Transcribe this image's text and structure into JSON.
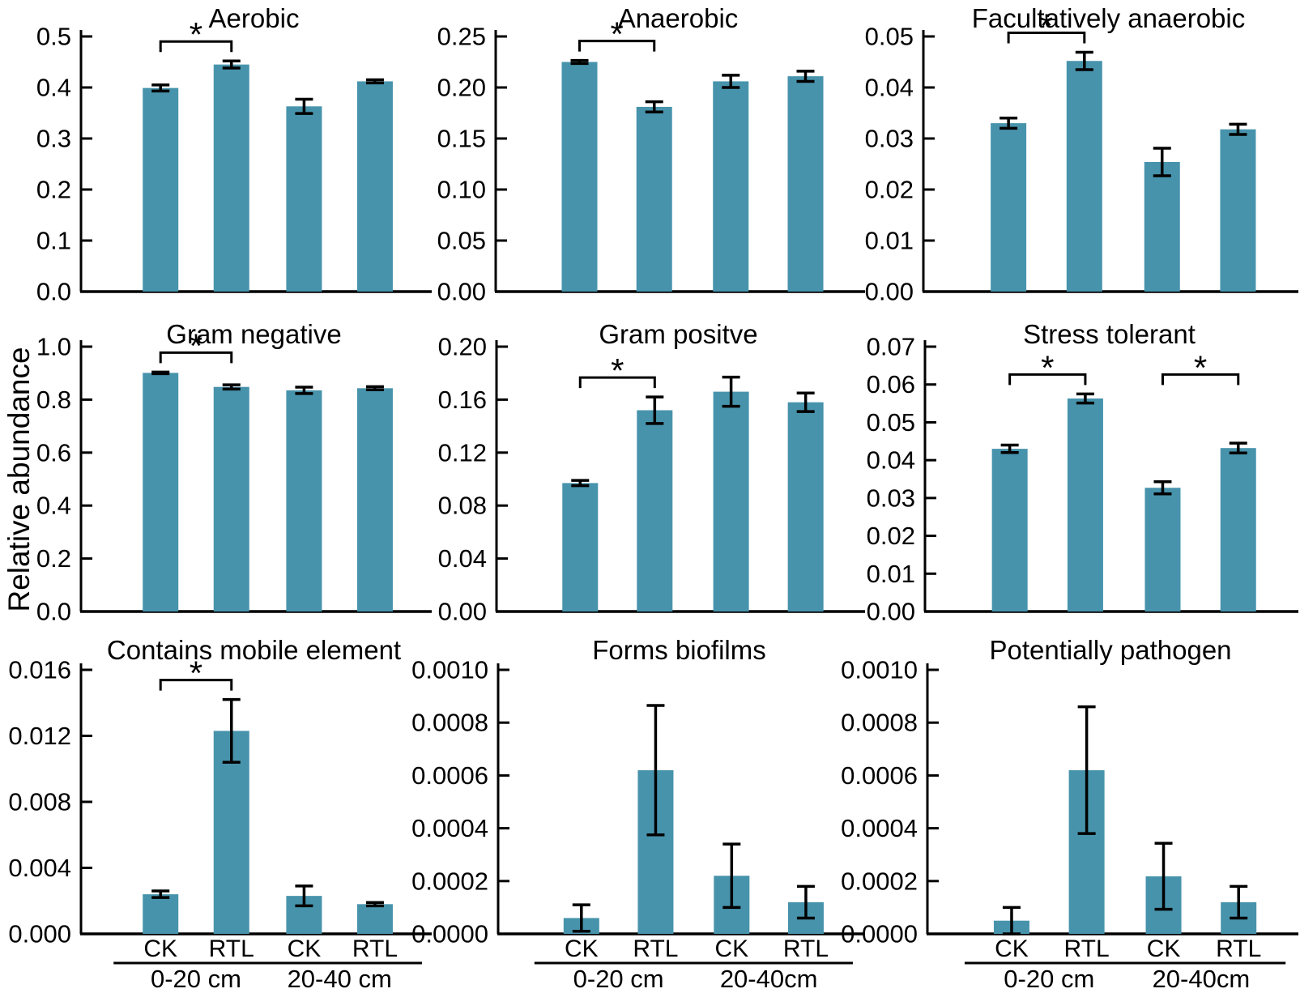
{
  "figure": {
    "ylabel": "Relative abundance",
    "bar_color": "#4793ac",
    "axis_color": "#000000",
    "significance_marker": "*"
  },
  "chart_data": [
    {
      "type": "bar",
      "title": "Aerobic",
      "categories": [
        "CK",
        "RTL",
        "CK",
        "RTL"
      ],
      "group_labels": [
        "0-20 cm",
        "20-40 cm"
      ],
      "values": [
        0.399,
        0.445,
        0.363,
        0.412
      ],
      "errors": [
        0.006,
        0.007,
        0.014,
        0.003
      ],
      "ylim": [
        0,
        0.5
      ],
      "yticks": [
        "0.0",
        "0.1",
        "0.2",
        "0.3",
        "0.4",
        "0.5"
      ],
      "significance": [
        [
          0,
          1
        ]
      ],
      "show_x_labels": false
    },
    {
      "type": "bar",
      "title": "Anaerobic",
      "categories": [
        "CK",
        "RTL",
        "CK",
        "RTL"
      ],
      "group_labels": [
        "0-20 cm",
        "20-40 cm"
      ],
      "values": [
        0.225,
        0.181,
        0.206,
        0.211
      ],
      "errors": [
        0.0015,
        0.005,
        0.006,
        0.005
      ],
      "ylim": [
        0,
        0.25
      ],
      "yticks": [
        "0.00",
        "0.05",
        "0.10",
        "0.15",
        "0.20",
        "0.25"
      ],
      "significance": [
        [
          0,
          1
        ]
      ],
      "show_x_labels": false
    },
    {
      "type": "bar",
      "title": "Facultatively anaerobic",
      "categories": [
        "CK",
        "RTL",
        "CK",
        "RTL"
      ],
      "group_labels": [
        "0-20 cm",
        "20-40 cm"
      ],
      "values": [
        0.033,
        0.0452,
        0.0254,
        0.0318
      ],
      "errors": [
        0.001,
        0.0017,
        0.0027,
        0.001
      ],
      "ylim": [
        0,
        0.05
      ],
      "yticks": [
        "0.00",
        "0.01",
        "0.02",
        "0.03",
        "0.04",
        "0.05"
      ],
      "significance": [
        [
          0,
          1
        ]
      ],
      "show_x_labels": false
    },
    {
      "type": "bar",
      "title": "Gram negative",
      "categories": [
        "CK",
        "RTL",
        "CK",
        "RTL"
      ],
      "group_labels": [
        "0-20 cm",
        "20-40 cm"
      ],
      "values": [
        0.901,
        0.848,
        0.835,
        0.843
      ],
      "errors": [
        0.003,
        0.008,
        0.012,
        0.006
      ],
      "ylim": [
        0,
        1.0
      ],
      "yticks": [
        "0.0",
        "0.2",
        "0.4",
        "0.6",
        "0.8",
        "1.0"
      ],
      "significance": [
        [
          0,
          1
        ]
      ],
      "show_x_labels": false
    },
    {
      "type": "bar",
      "title": "Gram positve",
      "categories": [
        "CK",
        "RTL",
        "CK",
        "RTL"
      ],
      "group_labels": [
        "0-20 cm",
        "20-40 cm"
      ],
      "values": [
        0.097,
        0.152,
        0.166,
        0.158
      ],
      "errors": [
        0.002,
        0.01,
        0.011,
        0.007
      ],
      "ylim": [
        0,
        0.2
      ],
      "yticks": [
        "0.00",
        "0.04",
        "0.08",
        "0.12",
        "0.16",
        "0.20"
      ],
      "significance": [
        [
          0,
          1
        ]
      ],
      "show_x_labels": false
    },
    {
      "type": "bar",
      "title": "Stress tolerant",
      "categories": [
        "CK",
        "RTL",
        "CK",
        "RTL"
      ],
      "group_labels": [
        "0-20 cm",
        "20-40 cm"
      ],
      "values": [
        0.043,
        0.0563,
        0.0327,
        0.0432
      ],
      "errors": [
        0.001,
        0.0012,
        0.0016,
        0.0013
      ],
      "ylim": [
        0,
        0.07
      ],
      "yticks": [
        "0.00",
        "0.01",
        "0.02",
        "0.03",
        "0.04",
        "0.05",
        "0.06",
        "0.07"
      ],
      "significance": [
        [
          0,
          1
        ],
        [
          2,
          3
        ]
      ],
      "show_x_labels": false
    },
    {
      "type": "bar",
      "title": "Contains mobile element",
      "categories": [
        "CK",
        "RTL",
        "CK",
        "RTL"
      ],
      "group_labels": [
        "0-20 cm",
        "20-40 cm"
      ],
      "values": [
        0.0024,
        0.0123,
        0.0023,
        0.0018
      ],
      "errors": [
        0.0002,
        0.0019,
        0.0006,
        0.0001
      ],
      "ylim": [
        0,
        0.016
      ],
      "yticks": [
        "0.000",
        "0.004",
        "0.008",
        "0.012",
        "0.016"
      ],
      "significance": [
        [
          0,
          1
        ]
      ],
      "show_x_labels": true
    },
    {
      "type": "bar",
      "title": "Forms biofilms",
      "categories": [
        "CK",
        "RTL",
        "CK",
        "RTL"
      ],
      "group_labels": [
        "0-20 cm",
        "20-40cm"
      ],
      "values": [
        6e-05,
        0.00062,
        0.00022,
        0.00012
      ],
      "errors": [
        5e-05,
        0.000245,
        0.00012,
        6e-05
      ],
      "ylim": [
        0,
        0.001
      ],
      "yticks": [
        "0.0000",
        "0.0002",
        "0.0004",
        "0.0006",
        "0.0008",
        "0.0010"
      ],
      "significance": [],
      "show_x_labels": true
    },
    {
      "type": "bar",
      "title": "Potentially pathogen",
      "categories": [
        "CK",
        "RTL",
        "CK",
        "RTL"
      ],
      "group_labels": [
        "0-20 cm",
        "20-40cm"
      ],
      "values": [
        5e-05,
        0.00062,
        0.000218,
        0.00012
      ],
      "errors": [
        5e-05,
        0.00024,
        0.000125,
        6e-05
      ],
      "ylim": [
        0,
        0.001
      ],
      "yticks": [
        "0.0000",
        "0.0002",
        "0.0004",
        "0.0006",
        "0.0008",
        "0.0010"
      ],
      "significance": [],
      "show_x_labels": true
    }
  ]
}
